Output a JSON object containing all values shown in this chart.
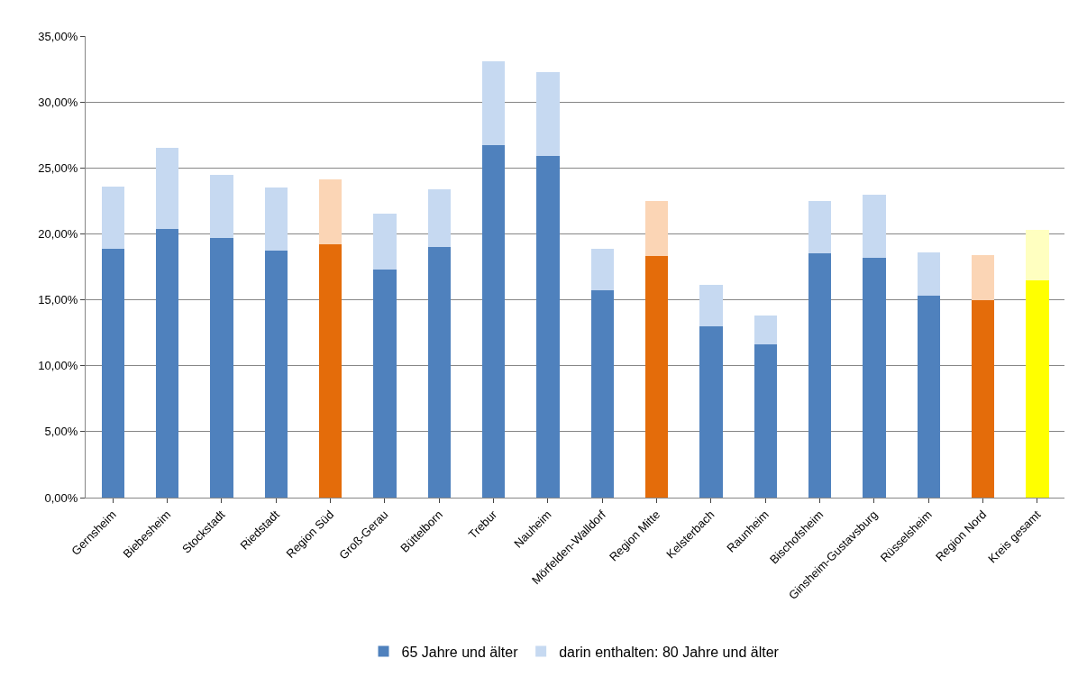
{
  "chart_data": {
    "type": "bar",
    "stacked": true,
    "categories": [
      "Gernsheim",
      "Biebesheim",
      "Stockstadt",
      "Riedstadt",
      "Region Süd",
      "Groß-Gerau",
      "Büttelborn",
      "Trebur",
      "Nauheim",
      "Mörfelden-Walldorf",
      "Region Mitte",
      "Kelsterbach",
      "Raunheim",
      "Bischofsheim",
      "Ginsheim-Gustavsburg",
      "Rüsselsheim",
      "Region Nord",
      "Kreis gesamt"
    ],
    "series": [
      {
        "name": "65 Jahre und älter",
        "colors": [
          "#4f81bd",
          "#4f81bd",
          "#4f81bd",
          "#4f81bd",
          "#e46c0a",
          "#4f81bd",
          "#4f81bd",
          "#4f81bd",
          "#4f81bd",
          "#4f81bd",
          "#e46c0a",
          "#4f81bd",
          "#4f81bd",
          "#4f81bd",
          "#4f81bd",
          "#4f81bd",
          "#e46c0a",
          "#ffff00"
        ],
        "values": [
          18.9,
          20.4,
          19.7,
          18.7,
          19.2,
          17.3,
          19.0,
          26.7,
          25.9,
          15.7,
          18.3,
          13.0,
          11.6,
          18.5,
          18.2,
          15.3,
          15.0,
          16.5
        ]
      },
      {
        "name": "darin enthalten: 80 Jahre und älter",
        "colors": [
          "#c6d9f1",
          "#c6d9f1",
          "#c6d9f1",
          "#c6d9f1",
          "#fbd5b5",
          "#c6d9f1",
          "#c6d9f1",
          "#c6d9f1",
          "#c6d9f1",
          "#c6d9f1",
          "#fbd5b5",
          "#c6d9f1",
          "#c6d9f1",
          "#c6d9f1",
          "#c6d9f1",
          "#c6d9f1",
          "#fbd5b5",
          "#ffffc0"
        ],
        "values": [
          4.7,
          6.1,
          4.8,
          4.8,
          4.9,
          4.2,
          4.4,
          6.4,
          6.4,
          3.2,
          4.2,
          3.1,
          2.2,
          4.0,
          4.8,
          3.3,
          3.4,
          3.8
        ]
      }
    ],
    "ylim": [
      0,
      35
    ],
    "yticks": [
      {
        "value": 0,
        "label": "0,00%"
      },
      {
        "value": 5,
        "label": "5,00%"
      },
      {
        "value": 10,
        "label": "10,00%"
      },
      {
        "value": 15,
        "label": "15,00%"
      },
      {
        "value": 20,
        "label": "20,00%"
      },
      {
        "value": 25,
        "label": "25,00%"
      },
      {
        "value": 30,
        "label": "30,00%"
      },
      {
        "value": 35,
        "label": "35,00%"
      }
    ],
    "grid": "y",
    "legend": "bottom"
  }
}
